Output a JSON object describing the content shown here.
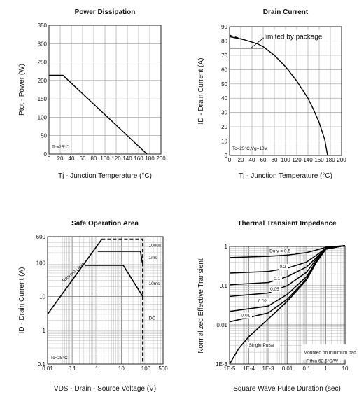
{
  "chart_data": [
    {
      "type": "line",
      "title": "Power Dissipation",
      "xlabel": "Tj - Junction Temperature (°C)",
      "ylabel": "Ptot - Power (W)",
      "xlim": [
        0,
        200
      ],
      "ylim": [
        0,
        350
      ],
      "xticks": [
        "0",
        "20",
        "40",
        "60",
        "80",
        "100",
        "120",
        "140",
        "160",
        "180",
        "200"
      ],
      "yticks": [
        "0",
        "50",
        "100",
        "150",
        "200",
        "250",
        "300",
        "350"
      ],
      "grid": true,
      "annotations": [
        "Tc=25°C"
      ],
      "series": [
        {
          "x": [
            0,
            25,
            175
          ],
          "y": [
            214,
            214,
            0
          ]
        }
      ]
    },
    {
      "type": "line",
      "title": "Drain Current",
      "xlabel": "Tj - Junction Temperature (°C)",
      "ylabel": "ID - Drain Current (A)",
      "xlim": [
        0,
        200
      ],
      "ylim": [
        0,
        90
      ],
      "xticks": [
        "0",
        "20",
        "40",
        "60",
        "80",
        "100",
        "120",
        "140",
        "160",
        "180",
        "200"
      ],
      "yticks": [
        "0",
        "10",
        "20",
        "30",
        "40",
        "50",
        "60",
        "70",
        "80",
        "90"
      ],
      "grid": true,
      "annotations": [
        "limited by package",
        "Tc=25°C,Vg=10V"
      ],
      "series": [
        {
          "x": [
            0,
            25,
            50,
            60,
            80,
            100,
            120,
            140,
            150,
            160,
            170,
            175
          ],
          "y": [
            83,
            81,
            78,
            76,
            70,
            62,
            52,
            40,
            32,
            23,
            11,
            0
          ],
          "style": "silicon-limit"
        },
        {
          "x": [
            0,
            25,
            50,
            60
          ],
          "y": [
            75,
            75,
            75,
            75
          ],
          "style": "package-limit"
        }
      ]
    },
    {
      "type": "line",
      "title": "Safe Operation Area",
      "xlabel": "VDS - Drain - Source Voltage (V)",
      "ylabel": "ID - Drain Current (A)",
      "xscale": "log",
      "yscale": "log",
      "xlim": [
        0.01,
        500
      ],
      "ylim": [
        0.1,
        600
      ],
      "xticks": [
        "0.01",
        "0.1",
        "1",
        "10",
        "100",
        "500"
      ],
      "yticks": [
        "0.1",
        "1",
        "10",
        "100",
        "600"
      ],
      "grid": true,
      "annotations": [
        "Rds(on) Limit",
        "Tc=25°C"
      ],
      "series": [
        {
          "name": "Rds(on) Limit",
          "x": [
            0.01,
            1.6
          ],
          "y": [
            3,
            500
          ]
        },
        {
          "name": "100us",
          "x": [
            1.6,
            75,
            75,
            80
          ],
          "y": [
            500,
            500,
            100,
            100
          ]
        },
        {
          "name": "1ms",
          "x": [
            1.1,
            60,
            72
          ],
          "y": [
            220,
            220,
            100
          ]
        },
        {
          "name": "10ms",
          "x": [
            0.34,
            12,
            75
          ],
          "y": [
            85,
            85,
            10
          ]
        },
        {
          "name": "DC",
          "x": [
            75,
            75
          ],
          "y": [
            100,
            0.1
          ]
        }
      ]
    },
    {
      "type": "line",
      "title": "Thermal Transient Impedance",
      "xlabel": "Square Wave Pulse Duration (sec)",
      "ylabel": "Normalized Effective Transient",
      "xscale": "log",
      "yscale": "log",
      "xlim": [
        1e-05,
        10
      ],
      "ylim": [
        0.001,
        1
      ],
      "xticks": [
        "1E-5",
        "1E-4",
        "1E-3",
        "0.01",
        "0.1",
        "1",
        "10"
      ],
      "yticks": [
        "1E-3",
        "0.01",
        "0.1",
        "1"
      ],
      "grid": true,
      "annotations": [
        "Mounted on minimum pad.",
        "Rthja 62.5°C/W"
      ],
      "series": [
        {
          "name": "Duty = 0.5",
          "x": [
            1e-05,
            0.001,
            0.01,
            0.1,
            0.3,
            1,
            10
          ],
          "y": [
            0.52,
            0.56,
            0.6,
            0.7,
            0.8,
            0.95,
            1.05
          ]
        },
        {
          "name": "0.2",
          "x": [
            1e-05,
            0.001,
            0.01,
            0.1,
            0.3,
            1,
            10
          ],
          "y": [
            0.21,
            0.23,
            0.28,
            0.4,
            0.58,
            0.9,
            1.05
          ]
        },
        {
          "name": "0.1",
          "x": [
            1e-05,
            0.001,
            0.01,
            0.1,
            0.3,
            1,
            10
          ],
          "y": [
            0.105,
            0.12,
            0.17,
            0.3,
            0.5,
            0.9,
            1.05
          ]
        },
        {
          "name": "0.05",
          "x": [
            1e-05,
            0.001,
            0.01,
            0.1,
            0.3,
            1,
            10
          ],
          "y": [
            0.053,
            0.065,
            0.1,
            0.22,
            0.45,
            0.88,
            1.05
          ]
        },
        {
          "name": "0.02",
          "x": [
            1e-05,
            0.001,
            0.01,
            0.1,
            0.3,
            1,
            10
          ],
          "y": [
            0.022,
            0.03,
            0.06,
            0.17,
            0.4,
            0.87,
            1.05
          ]
        },
        {
          "name": "0.01",
          "x": [
            1e-05,
            0.001,
            0.01,
            0.1,
            0.3,
            1,
            10
          ],
          "y": [
            0.012,
            0.02,
            0.045,
            0.15,
            0.38,
            0.86,
            1.05
          ]
        },
        {
          "name": "Single Pulse",
          "x": [
            1e-05,
            3e-05,
            0.0001,
            0.001,
            0.01,
            0.1,
            0.3,
            1,
            10
          ],
          "y": [
            0.001,
            0.0025,
            0.005,
            0.014,
            0.04,
            0.14,
            0.37,
            0.85,
            1.05
          ]
        }
      ]
    }
  ]
}
